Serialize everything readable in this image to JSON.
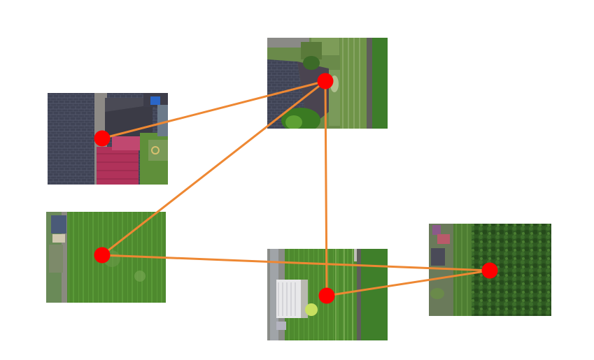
{
  "diagram": {
    "background": "#ffffff",
    "edge_color": "#ee8833",
    "node_color": "#ff0000",
    "tiles": [
      {
        "id": "tile-a",
        "scene": "dark-roofs-red-roof"
      },
      {
        "id": "tile-b",
        "scene": "roof-garden-fence"
      },
      {
        "id": "tile-c",
        "scene": "lawn-small-shed"
      },
      {
        "id": "tile-d",
        "scene": "lawn-white-building-fence"
      },
      {
        "id": "tile-e",
        "scene": "dense-vegetation"
      }
    ],
    "edges": [
      {
        "from": "tile-a",
        "to": "tile-b"
      },
      {
        "from": "tile-c",
        "to": "tile-b"
      },
      {
        "from": "tile-b",
        "to": "tile-d"
      },
      {
        "from": "tile-c",
        "to": "tile-e"
      },
      {
        "from": "tile-d",
        "to": "tile-e"
      }
    ]
  }
}
